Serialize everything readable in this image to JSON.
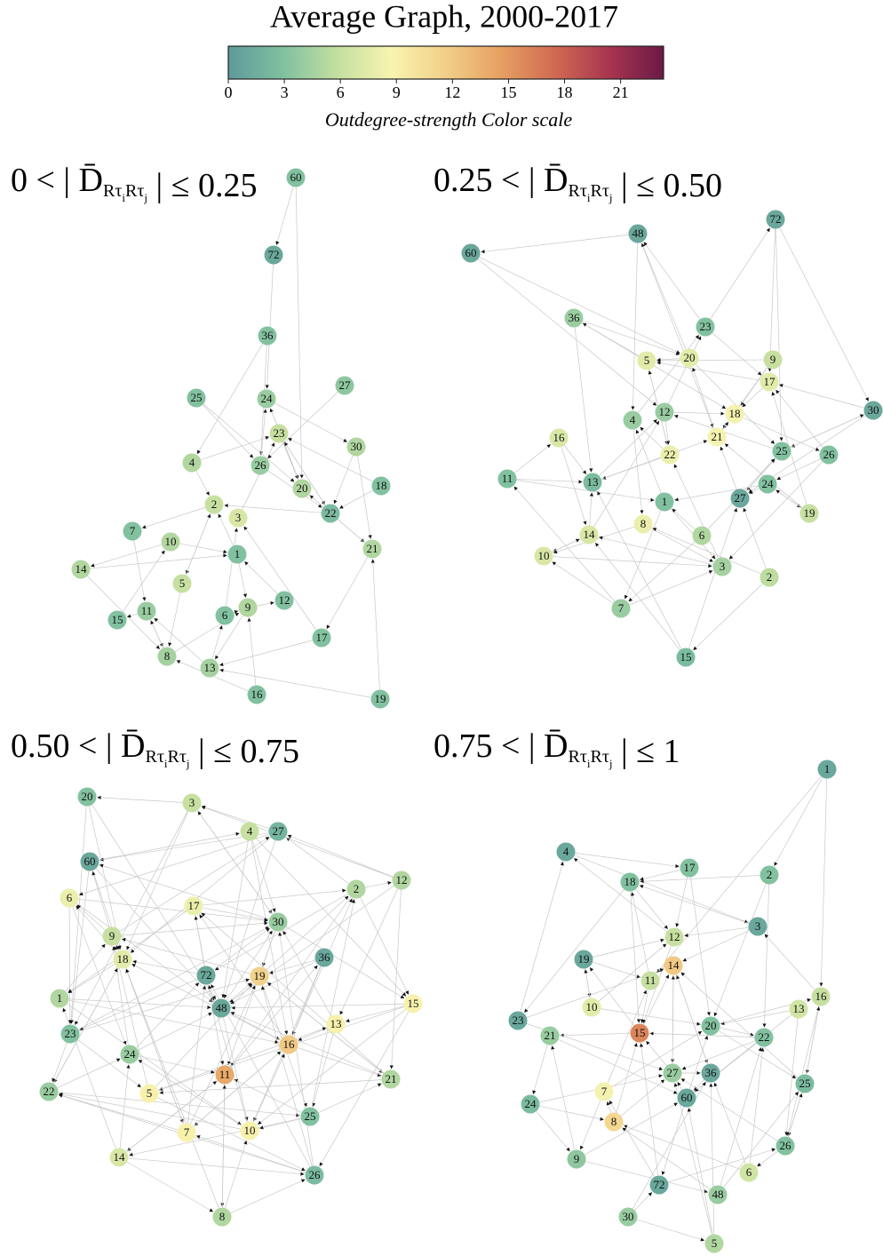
{
  "title": "Average Graph, 2000-2017",
  "colorbar": {
    "range": [
      0,
      23.3
    ],
    "ticks": [
      0,
      3,
      6,
      9,
      12,
      15,
      18,
      21
    ],
    "label": "Outdegree-strength Color scale",
    "colors": [
      "#5e9a9a",
      "#80c0a0",
      "#c4dfa0",
      "#f8f4b0",
      "#f2cf88",
      "#e6a062",
      "#d06a52",
      "#a83550",
      "#6a1a45"
    ]
  },
  "panels": [
    {
      "title": {
        "left": "0 < | ",
        "symbol": "D̄",
        "sub1": "Rτ",
        "idx1": "i",
        "sub2": "Rτ",
        "idx2": "j",
        "right": " | ≤ 0.25"
      },
      "nodes": [
        {
          "label": "60",
          "strength": 3
        },
        {
          "label": "72",
          "strength": 1
        },
        {
          "label": "36",
          "strength": 3
        },
        {
          "label": "25",
          "strength": 3
        },
        {
          "label": "24",
          "strength": 4
        },
        {
          "label": "27",
          "strength": 3.5
        },
        {
          "label": "23",
          "strength": 6
        },
        {
          "label": "30",
          "strength": 5
        },
        {
          "label": "4",
          "strength": 5
        },
        {
          "label": "26",
          "strength": 4
        },
        {
          "label": "20",
          "strength": 5
        },
        {
          "label": "18",
          "strength": 3
        },
        {
          "label": "22",
          "strength": 2.5
        },
        {
          "label": "2",
          "strength": 6
        },
        {
          "label": "3",
          "strength": 7
        },
        {
          "label": "7",
          "strength": 3
        },
        {
          "label": "10",
          "strength": 5
        },
        {
          "label": "1",
          "strength": 3
        },
        {
          "label": "21",
          "strength": 5
        },
        {
          "label": "14",
          "strength": 5
        },
        {
          "label": "5",
          "strength": 6
        },
        {
          "label": "11",
          "strength": 4
        },
        {
          "label": "15",
          "strength": 3
        },
        {
          "label": "9",
          "strength": 5
        },
        {
          "label": "6",
          "strength": 3
        },
        {
          "label": "12",
          "strength": 3
        },
        {
          "label": "17",
          "strength": 3
        },
        {
          "label": "8",
          "strength": 4.5
        },
        {
          "label": "13",
          "strength": 4.5
        },
        {
          "label": "16",
          "strength": 3
        },
        {
          "label": "19",
          "strength": 3
        }
      ]
    },
    {
      "title": {
        "left": "0.25 < | ",
        "symbol": "D̄",
        "sub1": "Rτ",
        "idx1": "i",
        "sub2": "Rτ",
        "idx2": "j",
        "right": " | ≤ 0.50"
      },
      "nodes": [
        {
          "label": "72",
          "strength": 1
        },
        {
          "label": "48",
          "strength": 1
        },
        {
          "label": "60",
          "strength": 1
        },
        {
          "label": "36",
          "strength": 4
        },
        {
          "label": "23",
          "strength": 3
        },
        {
          "label": "5",
          "strength": 7.5
        },
        {
          "label": "20",
          "strength": 7.5
        },
        {
          "label": "9",
          "strength": 6
        },
        {
          "label": "17",
          "strength": 7.5
        },
        {
          "label": "30",
          "strength": 1
        },
        {
          "label": "12",
          "strength": 4
        },
        {
          "label": "18",
          "strength": 8.5
        },
        {
          "label": "4",
          "strength": 4
        },
        {
          "label": "16",
          "strength": 7
        },
        {
          "label": "21",
          "strength": 8.5
        },
        {
          "label": "22",
          "strength": 8
        },
        {
          "label": "25",
          "strength": 3
        },
        {
          "label": "26",
          "strength": 3
        },
        {
          "label": "11",
          "strength": 3
        },
        {
          "label": "13",
          "strength": 2.5
        },
        {
          "label": "24",
          "strength": 3
        },
        {
          "label": "1",
          "strength": 3
        },
        {
          "label": "27",
          "strength": 1
        },
        {
          "label": "19",
          "strength": 6
        },
        {
          "label": "8",
          "strength": 8
        },
        {
          "label": "14",
          "strength": 7
        },
        {
          "label": "6",
          "strength": 5
        },
        {
          "label": "10",
          "strength": 7
        },
        {
          "label": "3",
          "strength": 4.5
        },
        {
          "label": "2",
          "strength": 5.5
        },
        {
          "label": "7",
          "strength": 4
        },
        {
          "label": "15",
          "strength": 2.5
        }
      ]
    },
    {
      "title": {
        "left": "0.50 < | ",
        "symbol": "D̄",
        "sub1": "Rτ",
        "idx1": "i",
        "sub2": "Rτ",
        "idx2": "j",
        "right": " | ≤ 0.75"
      },
      "nodes": [
        {
          "label": "20",
          "strength": 3
        },
        {
          "label": "3",
          "strength": 6
        },
        {
          "label": "4",
          "strength": 6
        },
        {
          "label": "27",
          "strength": 2
        },
        {
          "label": "60",
          "strength": 1
        },
        {
          "label": "6",
          "strength": 8
        },
        {
          "label": "2",
          "strength": 5
        },
        {
          "label": "12",
          "strength": 5
        },
        {
          "label": "17",
          "strength": 8
        },
        {
          "label": "30",
          "strength": 4
        },
        {
          "label": "9",
          "strength": 6
        },
        {
          "label": "18",
          "strength": 7.5
        },
        {
          "label": "72",
          "strength": 1
        },
        {
          "label": "19",
          "strength": 11.5
        },
        {
          "label": "36",
          "strength": 1
        },
        {
          "label": "1",
          "strength": 5
        },
        {
          "label": "48",
          "strength": 1
        },
        {
          "label": "15",
          "strength": 9
        },
        {
          "label": "13",
          "strength": 9
        },
        {
          "label": "23",
          "strength": 3
        },
        {
          "label": "16",
          "strength": 12
        },
        {
          "label": "24",
          "strength": 4
        },
        {
          "label": "11",
          "strength": 14
        },
        {
          "label": "21",
          "strength": 5
        },
        {
          "label": "22",
          "strength": 4
        },
        {
          "label": "5",
          "strength": 9
        },
        {
          "label": "25",
          "strength": 3
        },
        {
          "label": "7",
          "strength": 9
        },
        {
          "label": "10",
          "strength": 9
        },
        {
          "label": "14",
          "strength": 7
        },
        {
          "label": "26",
          "strength": 2.5
        },
        {
          "label": "8",
          "strength": 5
        }
      ]
    },
    {
      "title": {
        "left": "0.75 < | ",
        "symbol": "D̄",
        "sub1": "Rτ",
        "idx1": "i",
        "sub2": "Rτ",
        "idx2": "j",
        "right": " | ≤ 1"
      },
      "nodes": [
        {
          "label": "1",
          "strength": 1
        },
        {
          "label": "4",
          "strength": 1
        },
        {
          "label": "18",
          "strength": 3
        },
        {
          "label": "17",
          "strength": 3
        },
        {
          "label": "2",
          "strength": 3
        },
        {
          "label": "3",
          "strength": 1
        },
        {
          "label": "12",
          "strength": 6
        },
        {
          "label": "14",
          "strength": 12
        },
        {
          "label": "19",
          "strength": 1
        },
        {
          "label": "11",
          "strength": 6
        },
        {
          "label": "16",
          "strength": 6
        },
        {
          "label": "13",
          "strength": 6.5
        },
        {
          "label": "10",
          "strength": 7.5
        },
        {
          "label": "15",
          "strength": 16
        },
        {
          "label": "20",
          "strength": 3
        },
        {
          "label": "22",
          "strength": 3
        },
        {
          "label": "23",
          "strength": 1
        },
        {
          "label": "21",
          "strength": 4
        },
        {
          "label": "27",
          "strength": 4
        },
        {
          "label": "36",
          "strength": 1
        },
        {
          "label": "25",
          "strength": 2.5
        },
        {
          "label": "7",
          "strength": 8.5
        },
        {
          "label": "60",
          "strength": 1
        },
        {
          "label": "24",
          "strength": 2.5
        },
        {
          "label": "8",
          "strength": 11
        },
        {
          "label": "26",
          "strength": 3
        },
        {
          "label": "6",
          "strength": 6.5
        },
        {
          "label": "9",
          "strength": 3.5
        },
        {
          "label": "72",
          "strength": 1
        },
        {
          "label": "48",
          "strength": 4
        },
        {
          "label": "30",
          "strength": 4
        },
        {
          "label": "5",
          "strength": 5
        }
      ]
    }
  ]
}
